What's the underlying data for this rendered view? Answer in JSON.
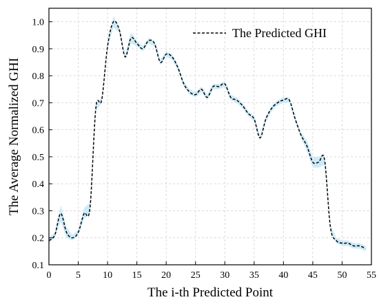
{
  "chart_data": {
    "type": "line",
    "title": "",
    "xlabel": "The i-th Predicted Point",
    "ylabel": "The Average Normalized GHI",
    "xlim": [
      0,
      55
    ],
    "ylim": [
      0.1,
      1.05
    ],
    "xticks": [
      0,
      5,
      10,
      15,
      20,
      25,
      30,
      35,
      40,
      45,
      50,
      55
    ],
    "yticks": [
      0.1,
      0.2,
      0.3,
      0.4,
      0.5,
      0.6,
      0.7,
      0.8,
      0.9,
      1.0
    ],
    "xtick_labels": [
      "0",
      "5",
      "10",
      "15",
      "20",
      "25",
      "30",
      "35",
      "40",
      "45",
      "50",
      "55"
    ],
    "ytick_labels": [
      "0.1",
      "0.2",
      "0.3",
      "0.4",
      "0.5",
      "0.6",
      "0.7",
      "0.8",
      "0.9",
      "1.0"
    ],
    "grid": true,
    "legend": {
      "position": "top-right",
      "entries": [
        "The Predicted GHI"
      ]
    },
    "series": [
      {
        "name": "The Predicted GHI",
        "line_style": "dashed",
        "color": "#000000",
        "band_color": "#cdeaf7",
        "x": [
          0,
          1,
          2,
          3,
          4,
          5,
          6,
          7,
          8,
          9,
          10,
          11,
          12,
          13,
          14,
          15,
          16,
          17,
          18,
          19,
          20,
          21,
          22,
          23,
          24,
          25,
          26,
          27,
          28,
          29,
          30,
          31,
          32,
          33,
          34,
          35,
          36,
          37,
          38,
          39,
          40,
          41,
          42,
          43,
          44,
          45,
          46,
          47,
          48,
          49,
          50,
          51,
          52,
          53,
          54
        ],
        "values": [
          0.19,
          0.21,
          0.29,
          0.22,
          0.2,
          0.22,
          0.29,
          0.31,
          0.68,
          0.71,
          0.91,
          1.0,
          0.97,
          0.87,
          0.94,
          0.92,
          0.9,
          0.93,
          0.92,
          0.85,
          0.88,
          0.87,
          0.83,
          0.77,
          0.74,
          0.73,
          0.75,
          0.72,
          0.76,
          0.76,
          0.77,
          0.72,
          0.71,
          0.69,
          0.66,
          0.64,
          0.57,
          0.64,
          0.68,
          0.7,
          0.71,
          0.71,
          0.64,
          0.58,
          0.54,
          0.48,
          0.48,
          0.49,
          0.24,
          0.19,
          0.18,
          0.18,
          0.17,
          0.17,
          0.16
        ],
        "band_halfwidth": [
          0.01,
          0.01,
          0.03,
          0.02,
          0.01,
          0.01,
          0.02,
          0.02,
          0.01,
          0.01,
          0.01,
          0.02,
          0.01,
          0.01,
          0.02,
          0.01,
          0.01,
          0.01,
          0.01,
          0.01,
          0.01,
          0.01,
          0.01,
          0.01,
          0.01,
          0.01,
          0.01,
          0.01,
          0.01,
          0.01,
          0.01,
          0.01,
          0.01,
          0.01,
          0.01,
          0.01,
          0.01,
          0.01,
          0.01,
          0.01,
          0.01,
          0.01,
          0.01,
          0.01,
          0.02,
          0.02,
          0.02,
          0.02,
          0.01,
          0.01,
          0.01,
          0.01,
          0.01,
          0.01,
          0.01
        ]
      }
    ]
  }
}
